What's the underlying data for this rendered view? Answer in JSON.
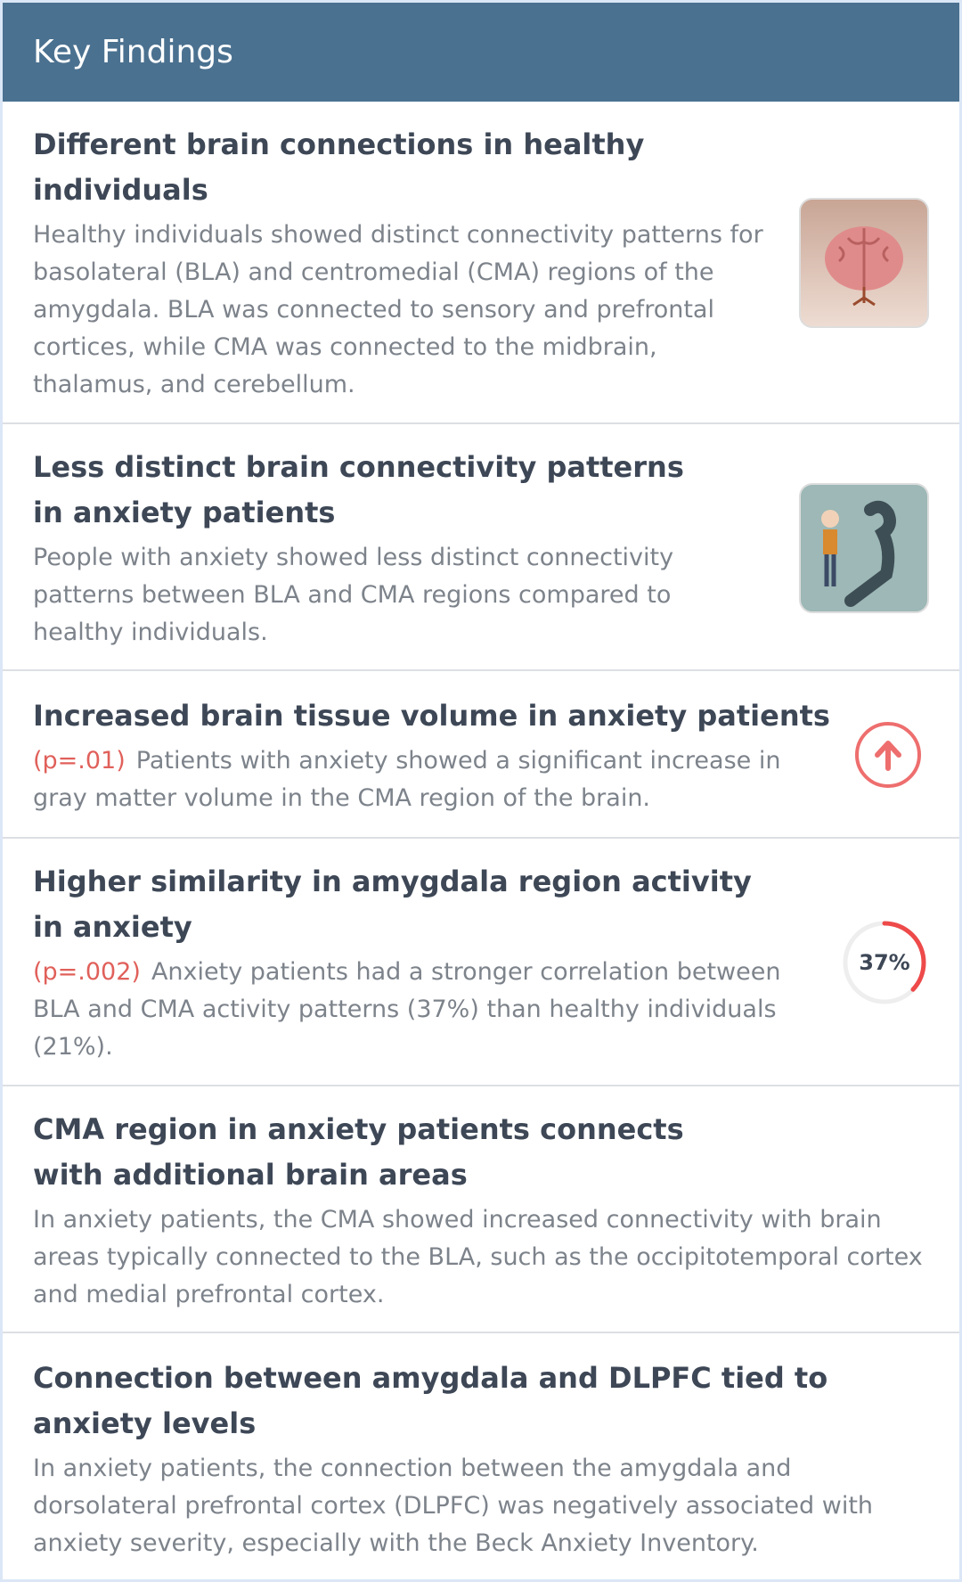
{
  "header": {
    "title": "Key Findings"
  },
  "findings": [
    {
      "title": "Different brain connections in healthy individuals",
      "body": "Healthy individuals showed distinct connectivity patterns for basolateral (BLA) and centromedial (CMA) regions of the amygdala. BLA was connected to sensory and prefrontal cortices, while CMA was connected to the midbrain, thalamus, and cerebellum."
    },
    {
      "title": "Less distinct brain connectivity patterns in anxiety patients",
      "body": "People with anxiety showed less distinct connectivity patterns between BLA and CMA regions compared to healthy individuals."
    },
    {
      "title": "Increased brain tissue volume in anxiety patients",
      "p_value": "(p=.01)",
      "body": "Patients with anxiety showed a significant increase in gray matter volume in the CMA region of the brain."
    },
    {
      "title": "Higher similarity in amygdala region activity in anxiety",
      "p_value": "(p=.002)",
      "body": "Anxiety patients had a stronger correlation between BLA and CMA activity patterns (37%) than healthy individuals (21%).",
      "ring": {
        "value": 37,
        "label": "37%"
      }
    },
    {
      "title": "CMA region in anxiety patients connects with additional brain areas",
      "body": "In anxiety patients, the CMA showed increased connectivity with brain areas typically connected to the BLA, such as the occipitotemporal cortex and medial prefrontal cortex."
    },
    {
      "title": "Connection between amygdala and DLPFC tied to anxiety levels",
      "body": "In anxiety patients, the connection between the amygdala and dorsolateral prefrontal cortex (DLPFC) was negatively associated with anxiety severity, especially with the Beck Anxiety Inventory."
    }
  ]
}
